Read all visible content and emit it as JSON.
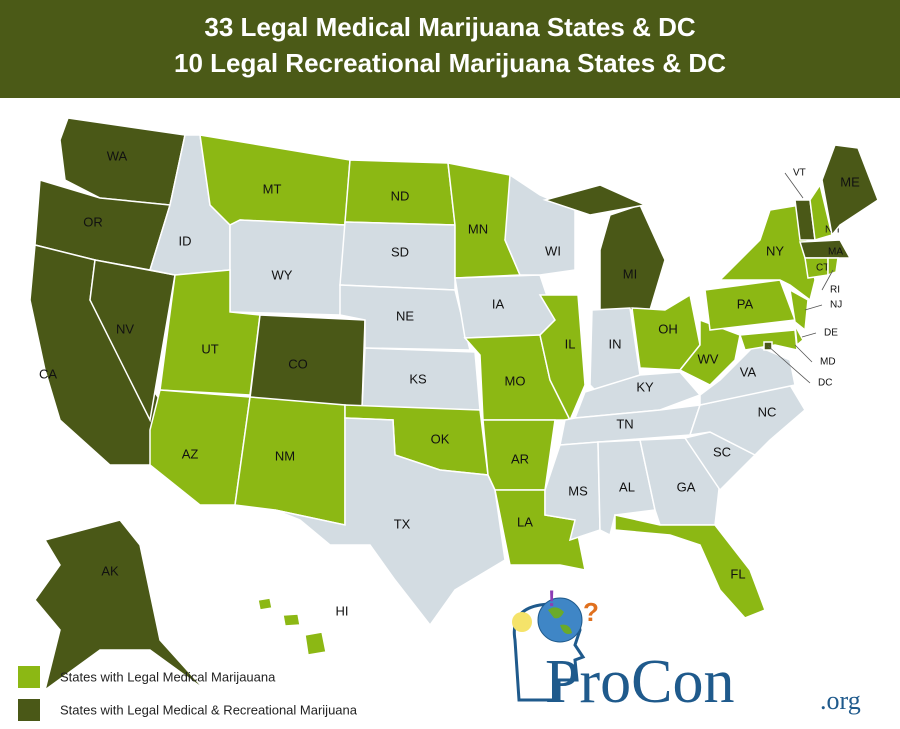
{
  "header": {
    "title_lines": [
      "33 Legal Medical Marijuana States & DC",
      "10 Legal Recreational Marijuana States & DC"
    ],
    "background": "#4b5a17"
  },
  "colors": {
    "medical": "#8cb814",
    "recreational": "#4a5817",
    "none": "#d3dce2"
  },
  "states": [
    {
      "label": "WA",
      "status": "recreational"
    },
    {
      "label": "OR",
      "status": "recreational"
    },
    {
      "label": "CA",
      "status": "recreational"
    },
    {
      "label": "NV",
      "status": "recreational"
    },
    {
      "label": "ID",
      "status": "none"
    },
    {
      "label": "MT",
      "status": "medical"
    },
    {
      "label": "WY",
      "status": "none"
    },
    {
      "label": "UT",
      "status": "medical"
    },
    {
      "label": "CO",
      "status": "recreational"
    },
    {
      "label": "AZ",
      "status": "medical"
    },
    {
      "label": "NM",
      "status": "medical"
    },
    {
      "label": "ND",
      "status": "medical"
    },
    {
      "label": "SD",
      "status": "none"
    },
    {
      "label": "NE",
      "status": "none"
    },
    {
      "label": "KS",
      "status": "none"
    },
    {
      "label": "OK",
      "status": "medical"
    },
    {
      "label": "TX",
      "status": "none"
    },
    {
      "label": "MN",
      "status": "medical"
    },
    {
      "label": "IA",
      "status": "none"
    },
    {
      "label": "MO",
      "status": "medical"
    },
    {
      "label": "AR",
      "status": "medical"
    },
    {
      "label": "LA",
      "status": "medical"
    },
    {
      "label": "WI",
      "status": "none"
    },
    {
      "label": "IL",
      "status": "medical"
    },
    {
      "label": "MI",
      "status": "recreational"
    },
    {
      "label": "IN",
      "status": "none"
    },
    {
      "label": "OH",
      "status": "medical"
    },
    {
      "label": "KY",
      "status": "none"
    },
    {
      "label": "TN",
      "status": "none"
    },
    {
      "label": "MS",
      "status": "none"
    },
    {
      "label": "AL",
      "status": "none"
    },
    {
      "label": "GA",
      "status": "none"
    },
    {
      "label": "FL",
      "status": "medical"
    },
    {
      "label": "SC",
      "status": "none"
    },
    {
      "label": "NC",
      "status": "none"
    },
    {
      "label": "VA",
      "status": "none"
    },
    {
      "label": "WV",
      "status": "medical"
    },
    {
      "label": "PA",
      "status": "medical"
    },
    {
      "label": "NY",
      "status": "medical"
    },
    {
      "label": "NJ",
      "status": "medical"
    },
    {
      "label": "DE",
      "status": "medical"
    },
    {
      "label": "MD",
      "status": "medical"
    },
    {
      "label": "DC",
      "status": "recreational"
    },
    {
      "label": "VT",
      "status": "recreational"
    },
    {
      "label": "NH",
      "status": "medical"
    },
    {
      "label": "ME",
      "status": "recreational"
    },
    {
      "label": "MA",
      "status": "recreational"
    },
    {
      "label": "CT",
      "status": "medical"
    },
    {
      "label": "RI",
      "status": "medical"
    },
    {
      "label": "AK",
      "status": "recreational"
    },
    {
      "label": "HI",
      "status": "medical"
    }
  ],
  "legend": [
    {
      "label": "States with Legal Medical Marijauana",
      "status": "medical"
    },
    {
      "label": "States with Legal Medical & Recreational Marijuana",
      "status": "recreational"
    }
  ],
  "logo": {
    "name": "ProCon",
    "suffix": ".org"
  }
}
